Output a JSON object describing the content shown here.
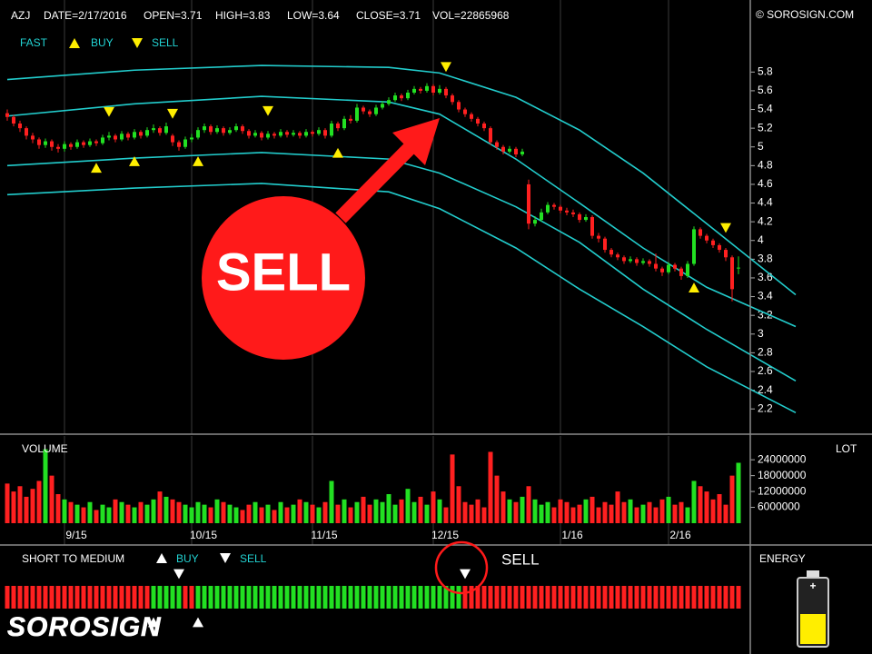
{
  "header": {
    "symbol": "AZJ",
    "date": "DATE=2/17/2016",
    "open": "OPEN=3.71",
    "high": "HIGH=3.83",
    "low": "LOW=3.64",
    "close": "CLOSE=3.71",
    "volume": "VOL=22865968",
    "copyright": "© SOROSIGN.COM"
  },
  "chart_data": {
    "type": "candlestick",
    "legend": {
      "fast": "FAST",
      "buy": "BUY",
      "sell": "SELL"
    },
    "ylim": [
      1.93,
      6.57
    ],
    "yticks": [
      5.8,
      5.6,
      5.4,
      5.2,
      5,
      4.8,
      4.6,
      4.4,
      4.2,
      4,
      3.8,
      3.6,
      3.4,
      3.2,
      3,
      2.8,
      2.6,
      2.4,
      2.2
    ],
    "date_ticks": [
      {
        "value": 9,
        "label": "9/15"
      },
      {
        "value": 29,
        "label": "10/15"
      },
      {
        "value": 48,
        "label": "11/15"
      },
      {
        "value": 67,
        "label": "12/15"
      },
      {
        "value": 87,
        "label": "1/16"
      },
      {
        "value": 104,
        "label": "2/16"
      }
    ],
    "up_color": "#22e022",
    "down_color": "#ff2020",
    "candles": [
      [
        5.36,
        5.4,
        5.28,
        5.32
      ],
      [
        5.32,
        5.34,
        5.22,
        5.25
      ],
      [
        5.25,
        5.28,
        5.16,
        5.2
      ],
      [
        5.2,
        5.22,
        5.08,
        5.12
      ],
      [
        5.12,
        5.15,
        5.04,
        5.08
      ],
      [
        5.08,
        5.1,
        4.98,
        5.02
      ],
      [
        5.02,
        5.09,
        4.99,
        5.06
      ],
      [
        5.06,
        5.08,
        4.96,
        5.0
      ],
      [
        5.0,
        5.03,
        4.94,
        4.98
      ],
      [
        4.98,
        5.06,
        4.95,
        5.03
      ],
      [
        5.03,
        5.05,
        4.97,
        5.0
      ],
      [
        5.0,
        5.08,
        4.98,
        5.05
      ],
      [
        5.05,
        5.07,
        4.99,
        5.02
      ],
      [
        5.02,
        5.09,
        5.0,
        5.06
      ],
      [
        5.06,
        5.08,
        5.01,
        5.04
      ],
      [
        5.04,
        5.13,
        5.02,
        5.1
      ],
      [
        5.1,
        5.16,
        5.07,
        5.12
      ],
      [
        5.12,
        5.14,
        5.05,
        5.08
      ],
      [
        5.08,
        5.17,
        5.06,
        5.14
      ],
      [
        5.14,
        5.16,
        5.07,
        5.1
      ],
      [
        5.1,
        5.19,
        5.08,
        5.16
      ],
      [
        5.16,
        5.18,
        5.09,
        5.12
      ],
      [
        5.12,
        5.21,
        5.1,
        5.18
      ],
      [
        5.18,
        5.24,
        5.15,
        5.2
      ],
      [
        5.2,
        5.22,
        5.12,
        5.15
      ],
      [
        5.15,
        5.26,
        5.13,
        5.22
      ],
      [
        5.12,
        5.14,
        5.01,
        5.05
      ],
      [
        5.05,
        5.07,
        4.96,
        5.0
      ],
      [
        5.0,
        5.11,
        4.98,
        5.08
      ],
      [
        5.08,
        5.14,
        5.05,
        5.1
      ],
      [
        5.1,
        5.21,
        5.08,
        5.18
      ],
      [
        5.18,
        5.25,
        5.15,
        5.22
      ],
      [
        5.22,
        5.24,
        5.13,
        5.16
      ],
      [
        5.16,
        5.23,
        5.14,
        5.2
      ],
      [
        5.2,
        5.22,
        5.12,
        5.15
      ],
      [
        5.15,
        5.21,
        5.13,
        5.18
      ],
      [
        5.18,
        5.25,
        5.16,
        5.22
      ],
      [
        5.22,
        5.24,
        5.14,
        5.17
      ],
      [
        5.17,
        5.19,
        5.09,
        5.12
      ],
      [
        5.12,
        5.18,
        5.1,
        5.15
      ],
      [
        5.15,
        5.17,
        5.07,
        5.1
      ],
      [
        5.1,
        5.17,
        5.08,
        5.14
      ],
      [
        5.14,
        5.16,
        5.09,
        5.12
      ],
      [
        5.12,
        5.19,
        5.1,
        5.16
      ],
      [
        5.16,
        5.18,
        5.1,
        5.13
      ],
      [
        5.13,
        5.18,
        5.11,
        5.15
      ],
      [
        5.15,
        5.17,
        5.09,
        5.12
      ],
      [
        5.12,
        5.19,
        5.1,
        5.16
      ],
      [
        5.16,
        5.18,
        5.11,
        5.14
      ],
      [
        5.14,
        5.21,
        5.12,
        5.18
      ],
      [
        5.18,
        5.2,
        5.09,
        5.12
      ],
      [
        5.12,
        5.28,
        5.1,
        5.25
      ],
      [
        5.25,
        5.27,
        5.17,
        5.2
      ],
      [
        5.2,
        5.33,
        5.18,
        5.3
      ],
      [
        5.3,
        5.34,
        5.25,
        5.28
      ],
      [
        5.28,
        5.46,
        5.26,
        5.42
      ],
      [
        5.42,
        5.44,
        5.35,
        5.38
      ],
      [
        5.38,
        5.4,
        5.32,
        5.35
      ],
      [
        5.35,
        5.45,
        5.33,
        5.42
      ],
      [
        5.42,
        5.49,
        5.4,
        5.46
      ],
      [
        5.46,
        5.53,
        5.44,
        5.5
      ],
      [
        5.5,
        5.58,
        5.48,
        5.55
      ],
      [
        5.55,
        5.57,
        5.49,
        5.52
      ],
      [
        5.52,
        5.61,
        5.5,
        5.58
      ],
      [
        5.58,
        5.65,
        5.56,
        5.62
      ],
      [
        5.62,
        5.64,
        5.57,
        5.6
      ],
      [
        5.6,
        5.68,
        5.58,
        5.65
      ],
      [
        5.65,
        5.67,
        5.55,
        5.58
      ],
      [
        5.58,
        5.66,
        5.56,
        5.62
      ],
      [
        5.62,
        5.64,
        5.52,
        5.55
      ],
      [
        5.55,
        5.57,
        5.45,
        5.48
      ],
      [
        5.48,
        5.5,
        5.37,
        5.4
      ],
      [
        5.4,
        5.42,
        5.32,
        5.35
      ],
      [
        5.35,
        5.37,
        5.27,
        5.3
      ],
      [
        5.3,
        5.32,
        5.22,
        5.25
      ],
      [
        5.25,
        5.27,
        5.17,
        5.2
      ],
      [
        5.2,
        5.22,
        5.02,
        5.05
      ],
      [
        5.05,
        5.07,
        4.97,
        5.0
      ],
      [
        5.0,
        5.02,
        4.92,
        4.95
      ],
      [
        4.95,
        5.01,
        4.93,
        4.98
      ],
      [
        4.98,
        5.0,
        4.89,
        4.92
      ],
      [
        4.92,
        4.98,
        4.9,
        4.95
      ],
      [
        4.6,
        4.65,
        4.12,
        4.18
      ],
      [
        4.18,
        4.26,
        4.15,
        4.22
      ],
      [
        4.22,
        4.34,
        4.2,
        4.3
      ],
      [
        4.3,
        4.41,
        4.28,
        4.38
      ],
      [
        4.38,
        4.4,
        4.33,
        4.36
      ],
      [
        4.36,
        4.38,
        4.29,
        4.32
      ],
      [
        4.32,
        4.35,
        4.27,
        4.3
      ],
      [
        4.3,
        4.33,
        4.25,
        4.28
      ],
      [
        4.28,
        4.3,
        4.19,
        4.22
      ],
      [
        4.22,
        4.28,
        4.2,
        4.25
      ],
      [
        4.25,
        4.27,
        4.02,
        4.05
      ],
      [
        4.05,
        4.08,
        3.98,
        4.02
      ],
      [
        4.02,
        4.04,
        3.87,
        3.9
      ],
      [
        3.9,
        3.92,
        3.82,
        3.85
      ],
      [
        3.85,
        3.87,
        3.79,
        3.82
      ],
      [
        3.82,
        3.84,
        3.75,
        3.78
      ],
      [
        3.78,
        3.83,
        3.76,
        3.8
      ],
      [
        3.8,
        3.82,
        3.73,
        3.76
      ],
      [
        3.76,
        3.81,
        3.74,
        3.78
      ],
      [
        3.78,
        3.8,
        3.72,
        3.75
      ],
      [
        3.75,
        3.86,
        3.67,
        3.7
      ],
      [
        3.7,
        3.72,
        3.62,
        3.66
      ],
      [
        3.66,
        3.77,
        3.64,
        3.74
      ],
      [
        3.74,
        3.76,
        3.67,
        3.7
      ],
      [
        3.7,
        3.72,
        3.58,
        3.62
      ],
      [
        3.62,
        3.78,
        3.6,
        3.75
      ],
      [
        3.75,
        4.15,
        3.73,
        4.12
      ],
      [
        4.12,
        4.14,
        4.02,
        4.05
      ],
      [
        4.05,
        4.07,
        3.97,
        4.0
      ],
      [
        4.0,
        4.02,
        3.92,
        3.95
      ],
      [
        3.95,
        3.97,
        3.87,
        3.9
      ],
      [
        3.9,
        3.92,
        3.78,
        3.82
      ],
      [
        3.82,
        3.84,
        3.35,
        3.48
      ],
      [
        3.71,
        3.83,
        3.64,
        3.71
      ]
    ],
    "bands": {
      "x": [
        0,
        20,
        40,
        60,
        68,
        80,
        90,
        100,
        110,
        124
      ],
      "series": [
        {
          "color": "#22cccc",
          "values": [
            5.72,
            5.82,
            5.87,
            5.85,
            5.79,
            5.53,
            5.18,
            4.72,
            4.18,
            3.42
          ]
        },
        {
          "color": "#22cccc",
          "values": [
            5.33,
            5.46,
            5.54,
            5.48,
            5.35,
            4.87,
            4.4,
            3.92,
            3.5,
            3.08
          ]
        },
        {
          "color": "#22cccc",
          "values": [
            4.8,
            4.88,
            4.94,
            4.87,
            4.72,
            4.36,
            3.98,
            3.48,
            3.05,
            2.5
          ]
        },
        {
          "color": "#22cccc",
          "values": [
            4.49,
            4.56,
            4.61,
            4.52,
            4.34,
            3.92,
            3.48,
            3.08,
            2.65,
            2.16
          ]
        }
      ]
    },
    "buy_signals": [
      14,
      20,
      30,
      52,
      108
    ],
    "sell_signals": [
      16,
      26,
      41,
      69,
      113
    ],
    "signal_color": "#ffee00",
    "annotation": "SELL",
    "volume": {
      "title": "VOLUME",
      "unit": "LOT",
      "ylim": [
        0,
        33000000
      ],
      "yticks": [
        24000000,
        18000000,
        12000000,
        6000000
      ],
      "values": [
        15000000,
        12000000,
        14000000,
        10000000,
        13000000,
        16000000,
        28000000,
        18000000,
        11000000,
        9000000,
        8000000,
        7000000,
        6000000,
        8000000,
        5000000,
        7000000,
        6000000,
        9000000,
        8000000,
        7000000,
        6000000,
        8000000,
        7000000,
        9000000,
        12000000,
        10000000,
        9000000,
        8000000,
        7000000,
        6000000,
        8000000,
        7000000,
        6000000,
        9000000,
        8000000,
        7000000,
        6000000,
        5000000,
        7000000,
        8000000,
        6000000,
        7000000,
        5000000,
        8000000,
        6000000,
        7000000,
        9000000,
        8000000,
        7000000,
        6000000,
        8000000,
        16000000,
        7000000,
        9000000,
        6000000,
        8000000,
        10000000,
        7000000,
        9000000,
        8000000,
        11000000,
        7000000,
        9000000,
        13000000,
        8000000,
        10000000,
        7000000,
        12000000,
        9000000,
        6000000,
        26000000,
        14000000,
        8000000,
        7000000,
        9000000,
        6000000,
        27000000,
        18000000,
        12000000,
        9000000,
        8000000,
        10000000,
        14000000,
        9000000,
        7000000,
        8000000,
        6000000,
        9000000,
        8000000,
        6000000,
        7000000,
        9000000,
        10000000,
        6000000,
        8000000,
        7000000,
        12000000,
        8000000,
        9000000,
        6000000,
        7000000,
        8000000,
        6000000,
        9000000,
        10000000,
        7000000,
        8000000,
        6000000,
        16000000,
        14000000,
        12000000,
        9000000,
        11000000,
        7000000,
        18000000,
        22865968
      ]
    },
    "short_term": {
      "title": "SHORT TO MEDIUM",
      "legend_buy": "BUY",
      "legend_sell": "SELL",
      "segments": [
        {
          "color": "#ff2020",
          "count": 23
        },
        {
          "color": "#22e022",
          "count": 5
        },
        {
          "color": "#ff2020",
          "count": 2
        },
        {
          "color": "#22e022",
          "count": 42
        },
        {
          "color": "#ff2020",
          "count": 44
        }
      ],
      "buy_signals": [
        23,
        30
      ],
      "sell_signals": [
        27,
        72
      ],
      "annotation": "SELL"
    },
    "energy": "ENERGY",
    "logo": "SOROSIGN"
  }
}
